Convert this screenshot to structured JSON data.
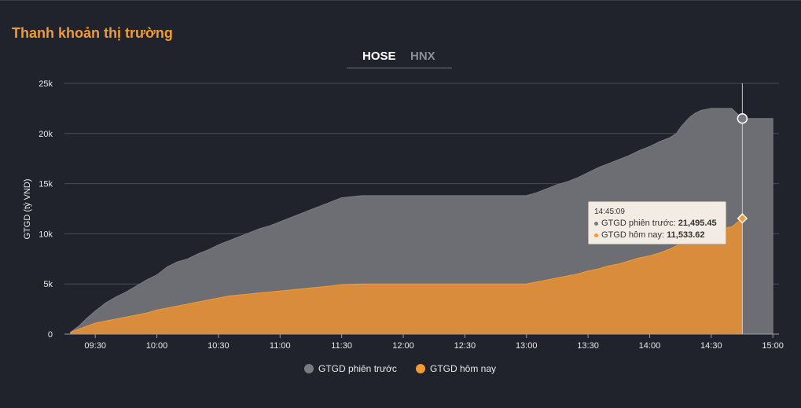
{
  "panel": {
    "title": "Thanh khoản thị trường"
  },
  "tabs": [
    {
      "label": "HOSE",
      "active": true
    },
    {
      "label": "HNX",
      "active": false
    }
  ],
  "colors": {
    "previous": "#7a7b80",
    "previous_fill": "#6d6e73",
    "today": "#f39a33",
    "today_fill": "#d98c3c",
    "grid": "#4a4d58",
    "text": "#e8e8ec",
    "title": "#f39a33"
  },
  "tooltip": {
    "time": "14:45:09",
    "previous_label": "GTGD phiên trước",
    "previous_value": "21,495.45",
    "today_label": "GTGD hôm nay",
    "today_value": "11,533.62"
  },
  "chart_data": {
    "type": "area",
    "ylabel": "GTGD (tỷ VND)",
    "ylim": [
      0,
      25000
    ],
    "y_ticks": [
      0,
      5000,
      10000,
      15000,
      20000,
      25000
    ],
    "y_tick_labels": [
      "0",
      "5k",
      "10k",
      "15k",
      "20k",
      "25k"
    ],
    "x_unit": "minutes",
    "xlim": [
      555,
      903
    ],
    "x_ticks": [
      570,
      600,
      630,
      660,
      690,
      720,
      750,
      780,
      810,
      840,
      870,
      900
    ],
    "x_tick_labels": [
      "09:30",
      "10:00",
      "10:30",
      "11:00",
      "11:30",
      "12:00",
      "12:30",
      "13:00",
      "13:30",
      "14:00",
      "14:30",
      "15:00"
    ],
    "grid": true,
    "legend_position": "bottom",
    "hover_x": 885.15,
    "series": [
      {
        "name": "GTGD phiên trước",
        "x": [
          558,
          562,
          566,
          570,
          575,
          580,
          585,
          590,
          595,
          600,
          605,
          610,
          615,
          620,
          625,
          630,
          635,
          640,
          645,
          650,
          655,
          660,
          665,
          670,
          675,
          680,
          685,
          690,
          700,
          710,
          720,
          730,
          740,
          750,
          760,
          770,
          780,
          785,
          790,
          795,
          800,
          805,
          810,
          815,
          820,
          825,
          830,
          835,
          840,
          845,
          850,
          853,
          855,
          858,
          860,
          862,
          865,
          870,
          875,
          880,
          885,
          890,
          895,
          900
        ],
        "values": [
          200,
          800,
          1600,
          2300,
          3100,
          3700,
          4200,
          4800,
          5400,
          5900,
          6700,
          7200,
          7500,
          8000,
          8400,
          8900,
          9300,
          9700,
          10100,
          10500,
          10800,
          11200,
          11600,
          12000,
          12400,
          12800,
          13200,
          13600,
          13800,
          13800,
          13800,
          13800,
          13800,
          13800,
          13800,
          13800,
          13800,
          14100,
          14500,
          14900,
          15200,
          15600,
          16100,
          16600,
          17000,
          17400,
          17800,
          18300,
          18700,
          19200,
          19600,
          20000,
          20600,
          21300,
          21700,
          22000,
          22300,
          22500,
          22500,
          22500,
          21495.45,
          21495.45,
          21495.45,
          21495.45
        ]
      },
      {
        "name": "GTGD hôm nay",
        "x": [
          558,
          562,
          566,
          570,
          575,
          580,
          585,
          590,
          595,
          600,
          605,
          610,
          615,
          620,
          625,
          630,
          635,
          640,
          645,
          650,
          655,
          660,
          665,
          670,
          675,
          680,
          685,
          690,
          700,
          710,
          720,
          730,
          740,
          750,
          760,
          770,
          780,
          785,
          790,
          795,
          800,
          805,
          810,
          815,
          820,
          825,
          830,
          835,
          840,
          845,
          850,
          855,
          860,
          865,
          870,
          875,
          880,
          885.15
        ],
        "values": [
          200,
          500,
          800,
          1100,
          1300,
          1500,
          1700,
          1900,
          2100,
          2400,
          2600,
          2800,
          3000,
          3200,
          3400,
          3600,
          3800,
          3900,
          4000,
          4100,
          4200,
          4300,
          4400,
          4500,
          4600,
          4700,
          4800,
          4950,
          5000,
          5000,
          5000,
          5000,
          5000,
          5000,
          5000,
          5000,
          5000,
          5200,
          5400,
          5600,
          5800,
          6000,
          6300,
          6500,
          6800,
          7000,
          7300,
          7600,
          7800,
          8100,
          8500,
          9000,
          9500,
          10000,
          10300,
          10500,
          10700,
          11533.62
        ]
      }
    ]
  }
}
